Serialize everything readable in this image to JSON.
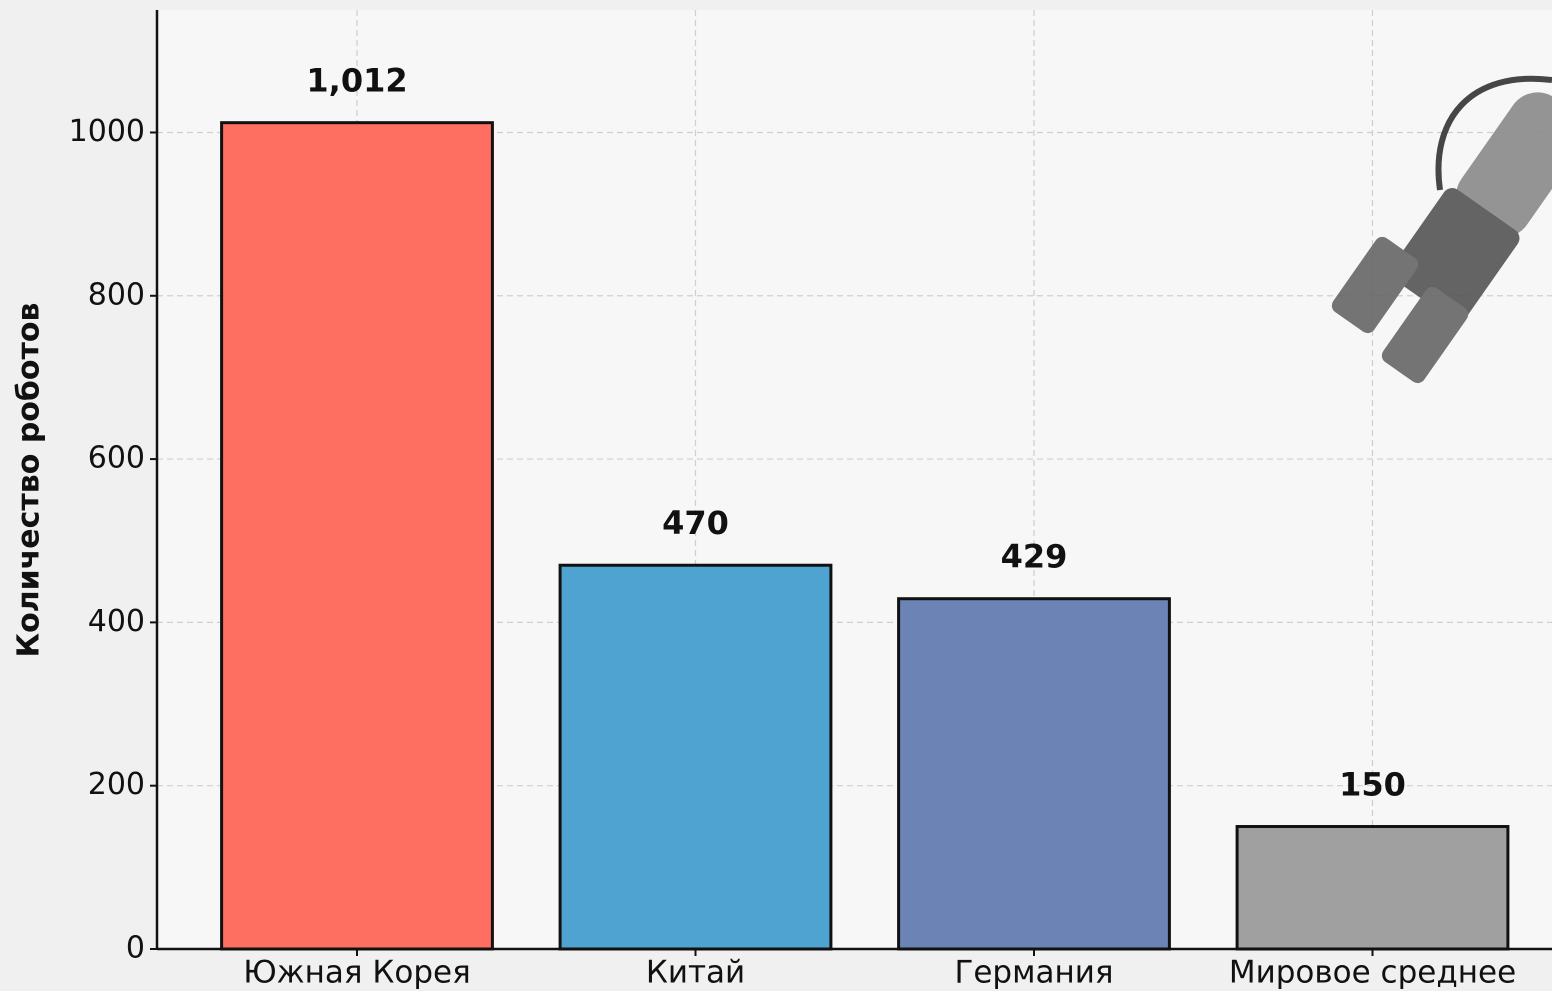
{
  "chart_data": {
    "type": "bar",
    "y_label": "Количество роботов",
    "categories": [
      "Южная Корея",
      "Китай",
      "Германия",
      "Мировое среднее"
    ],
    "values": [
      1012,
      470,
      429,
      150
    ],
    "value_labels": [
      "1,012",
      "470",
      "429",
      "150"
    ],
    "colors": [
      "#ff6f61",
      "#4fa3d1",
      "#6c83b5",
      "#a0a0a0"
    ],
    "ylim": [
      0,
      1150
    ],
    "yticks": [
      0,
      200,
      400,
      600,
      800,
      1000
    ],
    "grid": true
  }
}
